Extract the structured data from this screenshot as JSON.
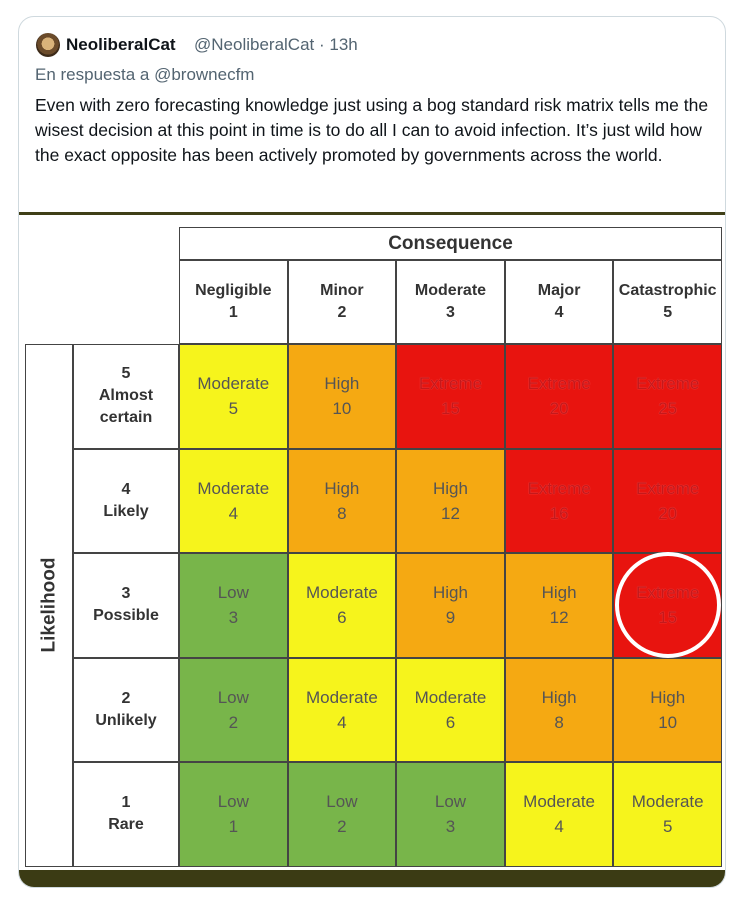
{
  "tweet": {
    "author": "NeoliberalCat",
    "meta": "@NeoliberalCat · 13h",
    "reply_to": "En respuesta a @brownecfm",
    "text": "Even with zero forecasting knowledge just using a bog standard risk matrix tells me the wisest decision at this point in time is to do all I can to avoid infection. It’s just wild how the exact opposite has been actively promoted by governments across the world."
  },
  "matrix": {
    "consequence": "Consequence",
    "likelihood": "Likelihood",
    "columns": [
      {
        "name": "Negligible",
        "number": "1"
      },
      {
        "name": "Minor",
        "number": "2"
      },
      {
        "name": "Moderate",
        "number": "3"
      },
      {
        "name": "Major",
        "number": "4"
      },
      {
        "name": "Catastrophic",
        "number": "5"
      }
    ],
    "rating_colors": {
      "Low": "#78b54a",
      "Moderate": "#f6f41c",
      "High": "#f5a912",
      "Extreme": "#e8140f"
    },
    "rows": [
      {
        "number": "5",
        "label": "Almost certain",
        "cells": [
          {
            "rating": "Moderate",
            "score": "5"
          },
          {
            "rating": "High",
            "score": "10"
          },
          {
            "rating": "Extreme",
            "score": "15"
          },
          {
            "rating": "Extreme",
            "score": "20"
          },
          {
            "rating": "Extreme",
            "score": "25"
          }
        ]
      },
      {
        "number": "4",
        "label": "Likely",
        "cells": [
          {
            "rating": "Moderate",
            "score": "4"
          },
          {
            "rating": "High",
            "score": "8"
          },
          {
            "rating": "High",
            "score": "12"
          },
          {
            "rating": "Extreme",
            "score": "16"
          },
          {
            "rating": "Extreme",
            "score": "20"
          }
        ]
      },
      {
        "number": "3",
        "label": "Possible",
        "cells": [
          {
            "rating": "Low",
            "score": "3"
          },
          {
            "rating": "Moderate",
            "score": "6"
          },
          {
            "rating": "High",
            "score": "9"
          },
          {
            "rating": "High",
            "score": "12"
          },
          {
            "rating": "Extreme",
            "score": "15"
          }
        ]
      },
      {
        "number": "2",
        "label": "Unlikely",
        "cells": [
          {
            "rating": "Low",
            "score": "2"
          },
          {
            "rating": "Moderate",
            "score": "4"
          },
          {
            "rating": "Moderate",
            "score": "6"
          },
          {
            "rating": "High",
            "score": "8"
          },
          {
            "rating": "High",
            "score": "10"
          }
        ]
      },
      {
        "number": "1",
        "label": "Rare",
        "cells": [
          {
            "rating": "Low",
            "score": "1"
          },
          {
            "rating": "Low",
            "score": "2"
          },
          {
            "rating": "Low",
            "score": "3"
          },
          {
            "rating": "Moderate",
            "score": "4"
          },
          {
            "rating": "Moderate",
            "score": "5"
          }
        ]
      }
    ],
    "highlight": {
      "row": 2,
      "column": 4
    }
  }
}
